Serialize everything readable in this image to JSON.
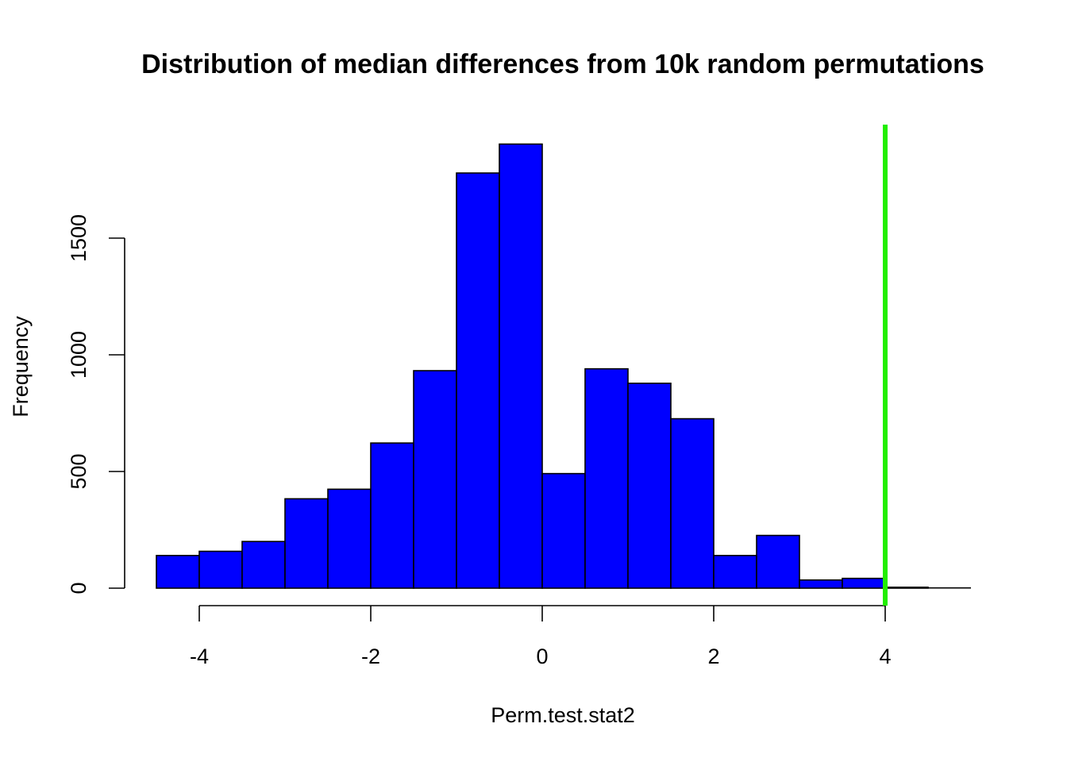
{
  "chart_data": {
    "type": "bar",
    "title": "Distribution of median differences from 10k random permutations",
    "xlabel": "Perm.test.stat2",
    "ylabel": "Frequency",
    "bin_edges": [
      -4.5,
      -4,
      -3.5,
      -3,
      -2.5,
      -2,
      -1.5,
      -1,
      -0.5,
      0,
      0.5,
      1,
      1.5,
      2,
      2.5,
      3,
      3.5,
      4,
      4.5,
      5
    ],
    "values": [
      140,
      158,
      200,
      383,
      424,
      622,
      932,
      1779,
      1903,
      491,
      940,
      878,
      726,
      140,
      226,
      35,
      42,
      4,
      1
    ],
    "xlim": [
      -4.5,
      5
    ],
    "ylim": [
      0,
      2000
    ],
    "x_ticks": [
      -4,
      -2,
      0,
      2,
      4
    ],
    "y_ticks": [
      0,
      500,
      1000,
      1500
    ],
    "reference_line": {
      "x": 4,
      "color": "#22ee00"
    },
    "bar_color": "#0000ff",
    "grid": false,
    "legend": "none"
  }
}
